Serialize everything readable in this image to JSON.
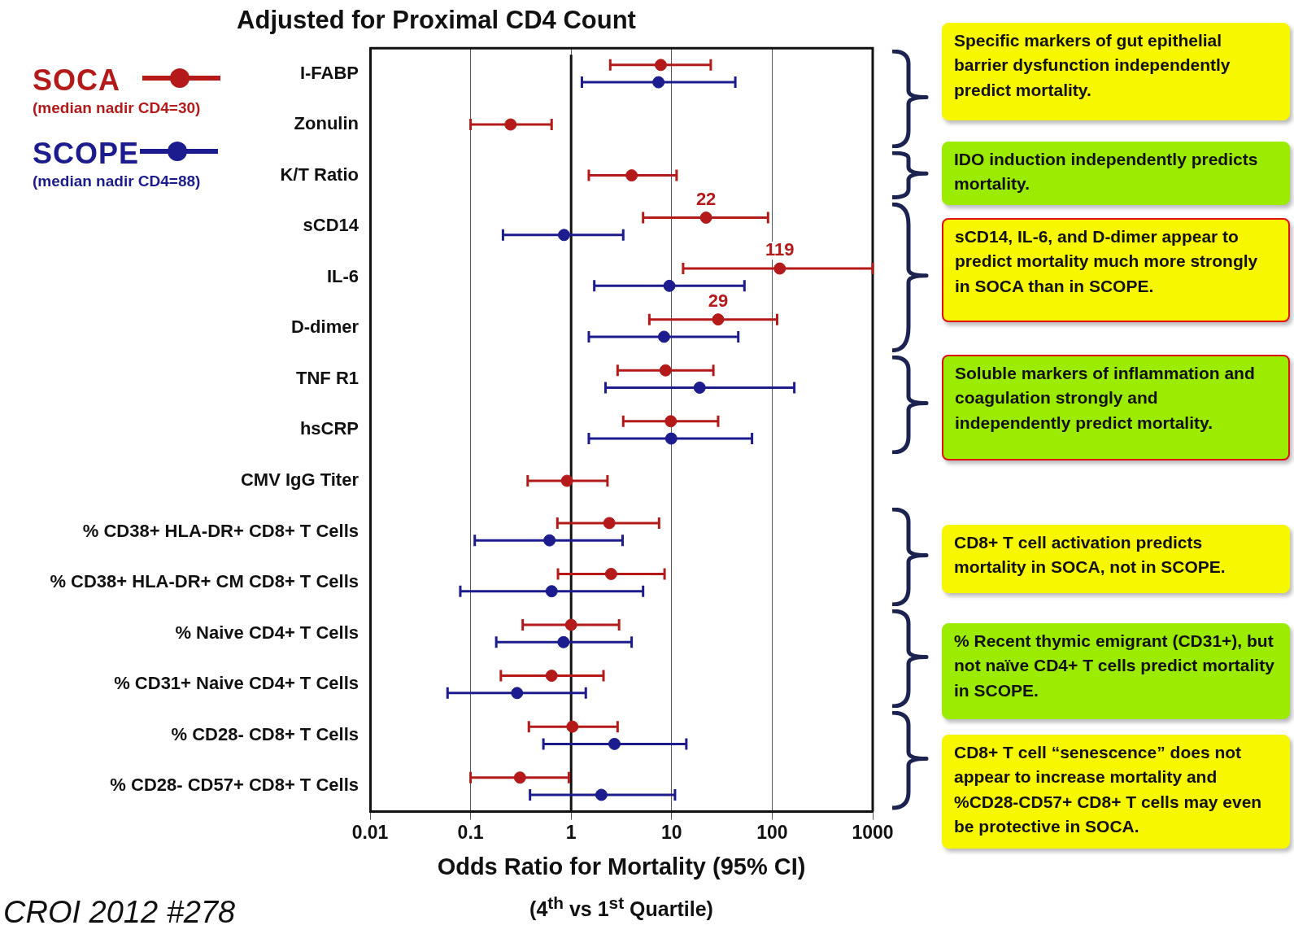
{
  "chart_data": {
    "type": "scatter",
    "title": "Adjusted for Proximal CD4 Count",
    "xlabel": "Odds Ratio for Mortality (95% CI)",
    "categories": [
      "I-FABP",
      "Zonulin",
      "K/T Ratio",
      "sCD14",
      "IL-6",
      "D-dimer",
      "TNF R1",
      "hsCRP",
      "CMV IgG Titer",
      "% CD38+ HLA-DR+ CD8+ T Cells",
      "% CD38+ HLA-DR+ CM CD8+ T Cells",
      "% Naive CD4+ T Cells",
      "% CD31+ Naive CD4+ T Cells",
      "% CD28- CD8+ T Cells",
      "% CD28- CD57+ CD8+ T Cells"
    ],
    "orientation": "horizontal",
    "log": "x",
    "xlim": [
      0.01,
      1000
    ],
    "xticks": [
      0.01,
      0.1,
      1,
      10,
      100,
      1000
    ],
    "grid": "x",
    "legend": "top left",
    "marker": "circle",
    "series": [
      {
        "name": "SOCA",
        "color": "#b51a1a",
        "values": [
          7.8,
          0.25,
          4.0,
          22,
          119,
          29,
          8.7,
          9.8,
          0.91,
          2.4,
          2.5,
          1.0,
          0.64,
          1.03,
          0.31
        ],
        "errors": [
          [
            2.45,
            24.5
          ],
          [
            0.1,
            0.64
          ],
          [
            1.5,
            11.2
          ],
          [
            5.2,
            91
          ],
          [
            13,
            1000
          ],
          [
            6.0,
            112
          ],
          [
            2.9,
            26
          ],
          [
            3.3,
            29
          ],
          [
            0.37,
            2.3
          ],
          [
            0.73,
            7.5
          ],
          [
            0.74,
            8.5
          ],
          [
            0.33,
            3.0
          ],
          [
            0.2,
            2.1
          ],
          [
            0.38,
            2.9
          ],
          [
            0.1,
            0.95
          ]
        ],
        "value_labels": [
          null,
          null,
          null,
          "22",
          "119",
          "29",
          null,
          null,
          null,
          null,
          null,
          null,
          null,
          null,
          null
        ]
      },
      {
        "name": "SCOPE",
        "color": "#1c1c8f",
        "values": [
          7.4,
          null,
          null,
          0.85,
          9.5,
          8.4,
          19,
          9.9,
          null,
          0.61,
          0.64,
          0.84,
          0.29,
          2.7,
          2.0
        ],
        "errors": [
          [
            1.28,
            43
          ],
          null,
          null,
          [
            0.21,
            3.3
          ],
          [
            1.7,
            53
          ],
          [
            1.5,
            46
          ],
          [
            2.2,
            166
          ],
          [
            1.5,
            63
          ],
          null,
          [
            0.11,
            3.25
          ],
          [
            0.079,
            5.2
          ],
          [
            0.18,
            4.0
          ],
          [
            0.059,
            1.4
          ],
          [
            0.53,
            14
          ],
          [
            0.39,
            10.8
          ]
        ]
      }
    ],
    "ref_lines": [
      {
        "axis": "x",
        "value": 1,
        "color": "#111111",
        "line_style": "solid"
      }
    ],
    "annotations": [
      "(median nadir CD4=30)",
      "(median nadir CD4=88)",
      "(4$^{th}$ vs 1$^{st}$ Quartile)",
      "Specific markers of gut epithelial barrier dysfunction independently predict mortality.",
      "IDO induction independently predicts mortality.",
      "sCD14, IL-6, and D-dimer appear to predict mortality much more strongly in SOCA than in SCOPE.",
      "Soluble markers of inflammation and coagulation strongly and independently predict mortality.",
      "CD8+ T cell activation predicts mortality in SOCA, not in SCOPE.",
      "% Recent thymic emigrant (CD31+), but not naïve CD4+ T cells predict mortality in SCOPE.",
      "CD8+ T cell “senescence” does not appear to increase mortality and %CD28-CD57+ CD8+ T cells may even be protective in SOCA.",
      "CROI 2012 #278"
    ]
  }
}
